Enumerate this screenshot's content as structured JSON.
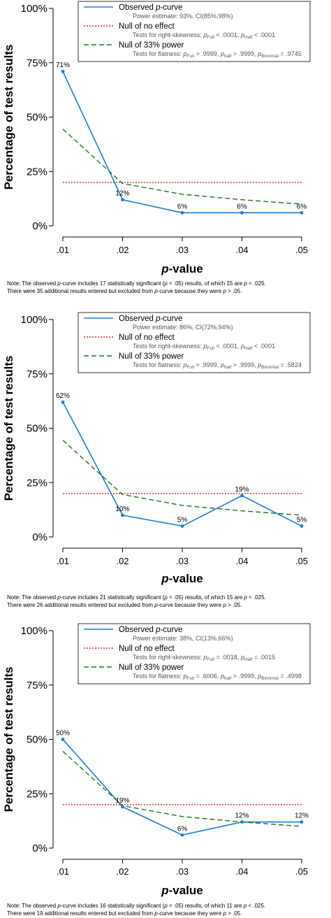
{
  "chart_data": [
    {
      "type": "line",
      "ylabel": "Percentage of test results",
      "xlabel_italic": "p",
      "xlabel_rest": "-value",
      "x": [
        0.01,
        0.02,
        0.03,
        0.04,
        0.05
      ],
      "x_tick_labels": [
        ".01",
        ".02",
        ".03",
        ".04",
        ".05"
      ],
      "y_tick_labels": [
        "0%",
        "25%",
        "50%",
        "75%",
        "100%"
      ],
      "y_ticks": [
        0,
        25,
        50,
        75,
        100
      ],
      "ylim": [
        0,
        100
      ],
      "series": [
        {
          "name": "Observed p-curve",
          "style": "solid",
          "color": "#1a7fd6",
          "values": [
            71,
            12,
            6,
            6,
            6
          ],
          "labels": [
            "71%",
            "12%",
            "6%",
            "6%",
            "6%"
          ]
        },
        {
          "name": "Null of no effect",
          "style": "dotted",
          "color": "#d62728",
          "values": [
            20,
            20,
            20,
            20,
            20
          ]
        },
        {
          "name": "Null of 33% power",
          "style": "dashed",
          "color": "#1d7a1d",
          "values": [
            44.5,
            19.5,
            14.5,
            12,
            10
          ]
        }
      ],
      "legend": [
        {
          "pre": "Observed ",
          "ital": "p",
          "post": "-curve",
          "sub": [
            "Power estimate: 93%, CI(85%,98%)"
          ]
        },
        {
          "pre": "Null of no effect",
          "ital": "",
          "post": "",
          "sub": [
            "Tests for right-skewness: ",
            "p",
            "Full",
            " < .0001,  ",
            "p",
            "Half",
            " < .0001"
          ]
        },
        {
          "pre": "Null of 33% power",
          "ital": "",
          "post": "",
          "sub": [
            "Tests for flatness: ",
            "p",
            "Full",
            " > .9999,  ",
            "p",
            "half",
            " > .9999,  ",
            "p",
            "Binomial",
            " = .9745"
          ]
        }
      ],
      "note_lines": [
        [
          "Note: The observed ",
          "p",
          "-curve includes 17 statistically significant (",
          "p",
          " < .05) results, of which 15 are ",
          "p",
          " < .025."
        ],
        [
          "There were 35 additional results entered but excluded from ",
          "p",
          "-curve because they were ",
          "p",
          " > .05."
        ]
      ]
    },
    {
      "type": "line",
      "ylabel": "Percentage of test results",
      "xlabel_italic": "p",
      "xlabel_rest": "-value",
      "x": [
        0.01,
        0.02,
        0.03,
        0.04,
        0.05
      ],
      "x_tick_labels": [
        ".01",
        ".02",
        ".03",
        ".04",
        ".05"
      ],
      "y_tick_labels": [
        "0%",
        "25%",
        "50%",
        "75%",
        "100%"
      ],
      "y_ticks": [
        0,
        25,
        50,
        75,
        100
      ],
      "ylim": [
        0,
        100
      ],
      "series": [
        {
          "name": "Observed p-curve",
          "style": "solid",
          "color": "#1a7fd6",
          "values": [
            62,
            10,
            5,
            19,
            5
          ],
          "labels": [
            "62%",
            "10%",
            "5%",
            "19%",
            "5%"
          ]
        },
        {
          "name": "Null of no effect",
          "style": "dotted",
          "color": "#d62728",
          "values": [
            20,
            20,
            20,
            20,
            20
          ]
        },
        {
          "name": "Null of 33% power",
          "style": "dashed",
          "color": "#1d7a1d",
          "values": [
            44.5,
            19.5,
            14.5,
            12,
            10
          ]
        }
      ],
      "legend": [
        {
          "pre": "Observed ",
          "ital": "p",
          "post": "-curve",
          "sub": [
            "Power estimate: 86%, CI(72%,94%)"
          ]
        },
        {
          "pre": "Null of no effect",
          "ital": "",
          "post": "",
          "sub": [
            "Tests for right-skewness: ",
            "p",
            "Full",
            " < .0001,  ",
            "p",
            "Half",
            " < .0001"
          ]
        },
        {
          "pre": "Null of 33% power",
          "ital": "",
          "post": "",
          "sub": [
            "Tests for flatness: ",
            "p",
            "Full",
            " > .9999,  ",
            "p",
            "half",
            " > .9999,  ",
            "p",
            "Binomial",
            " = .5824"
          ]
        }
      ],
      "note_lines": [
        [
          "Note: The observed ",
          "p",
          "-curve includes 21 statistically significant (",
          "p",
          " < .05) results, of which 15 are ",
          "p",
          " < .025."
        ],
        [
          "There were 26 additional results entered but excluded from ",
          "p",
          "-curve because they were ",
          "p",
          " > .05."
        ]
      ]
    },
    {
      "type": "line",
      "ylabel": "Percentage of test results",
      "xlabel_italic": "p",
      "xlabel_rest": "-value",
      "x": [
        0.01,
        0.02,
        0.03,
        0.04,
        0.05
      ],
      "x_tick_labels": [
        ".01",
        ".02",
        ".03",
        ".04",
        ".05"
      ],
      "y_tick_labels": [
        "0%",
        "25%",
        "50%",
        "75%",
        "100%"
      ],
      "y_ticks": [
        0,
        25,
        50,
        75,
        100
      ],
      "ylim": [
        0,
        100
      ],
      "series": [
        {
          "name": "Observed p-curve",
          "style": "solid",
          "color": "#1a7fd6",
          "values": [
            50,
            19,
            6,
            12,
            12
          ],
          "labels": [
            "50%",
            "19%",
            "6%",
            "12%",
            "12%"
          ]
        },
        {
          "name": "Null of no effect",
          "style": "dotted",
          "color": "#d62728",
          "values": [
            20,
            20,
            20,
            20,
            20
          ]
        },
        {
          "name": "Null of 33% power",
          "style": "dashed",
          "color": "#1d7a1d",
          "values": [
            44.5,
            19.5,
            14.5,
            12,
            10
          ]
        }
      ],
      "legend": [
        {
          "pre": "Observed ",
          "ital": "p",
          "post": "-curve",
          "sub": [
            "Power estimate: 38%, CI(13%,66%)"
          ]
        },
        {
          "pre": "Null of no effect",
          "ital": "",
          "post": "",
          "sub": [
            "Tests for right-skewness: ",
            "p",
            "Full",
            " = .0018,  ",
            "p",
            "Half",
            " = .0015"
          ]
        },
        {
          "pre": "Null of 33% power",
          "ital": "",
          "post": "",
          "sub": [
            "Tests for flatness: ",
            "p",
            "Full",
            " = .6006,  ",
            "p",
            "half",
            " > .9999,  ",
            "p",
            "Binomial",
            " = .4998"
          ]
        }
      ],
      "note_lines": [
        [
          "Note: The observed ",
          "p",
          "-curve includes 16 statistically significant (",
          "p",
          " < .05) results, of which 11 are ",
          "p",
          " < .025."
        ],
        [
          "There were 19 additional results entered but excluded from ",
          "p",
          "-curve because they were ",
          "p",
          " > .05."
        ]
      ]
    }
  ]
}
